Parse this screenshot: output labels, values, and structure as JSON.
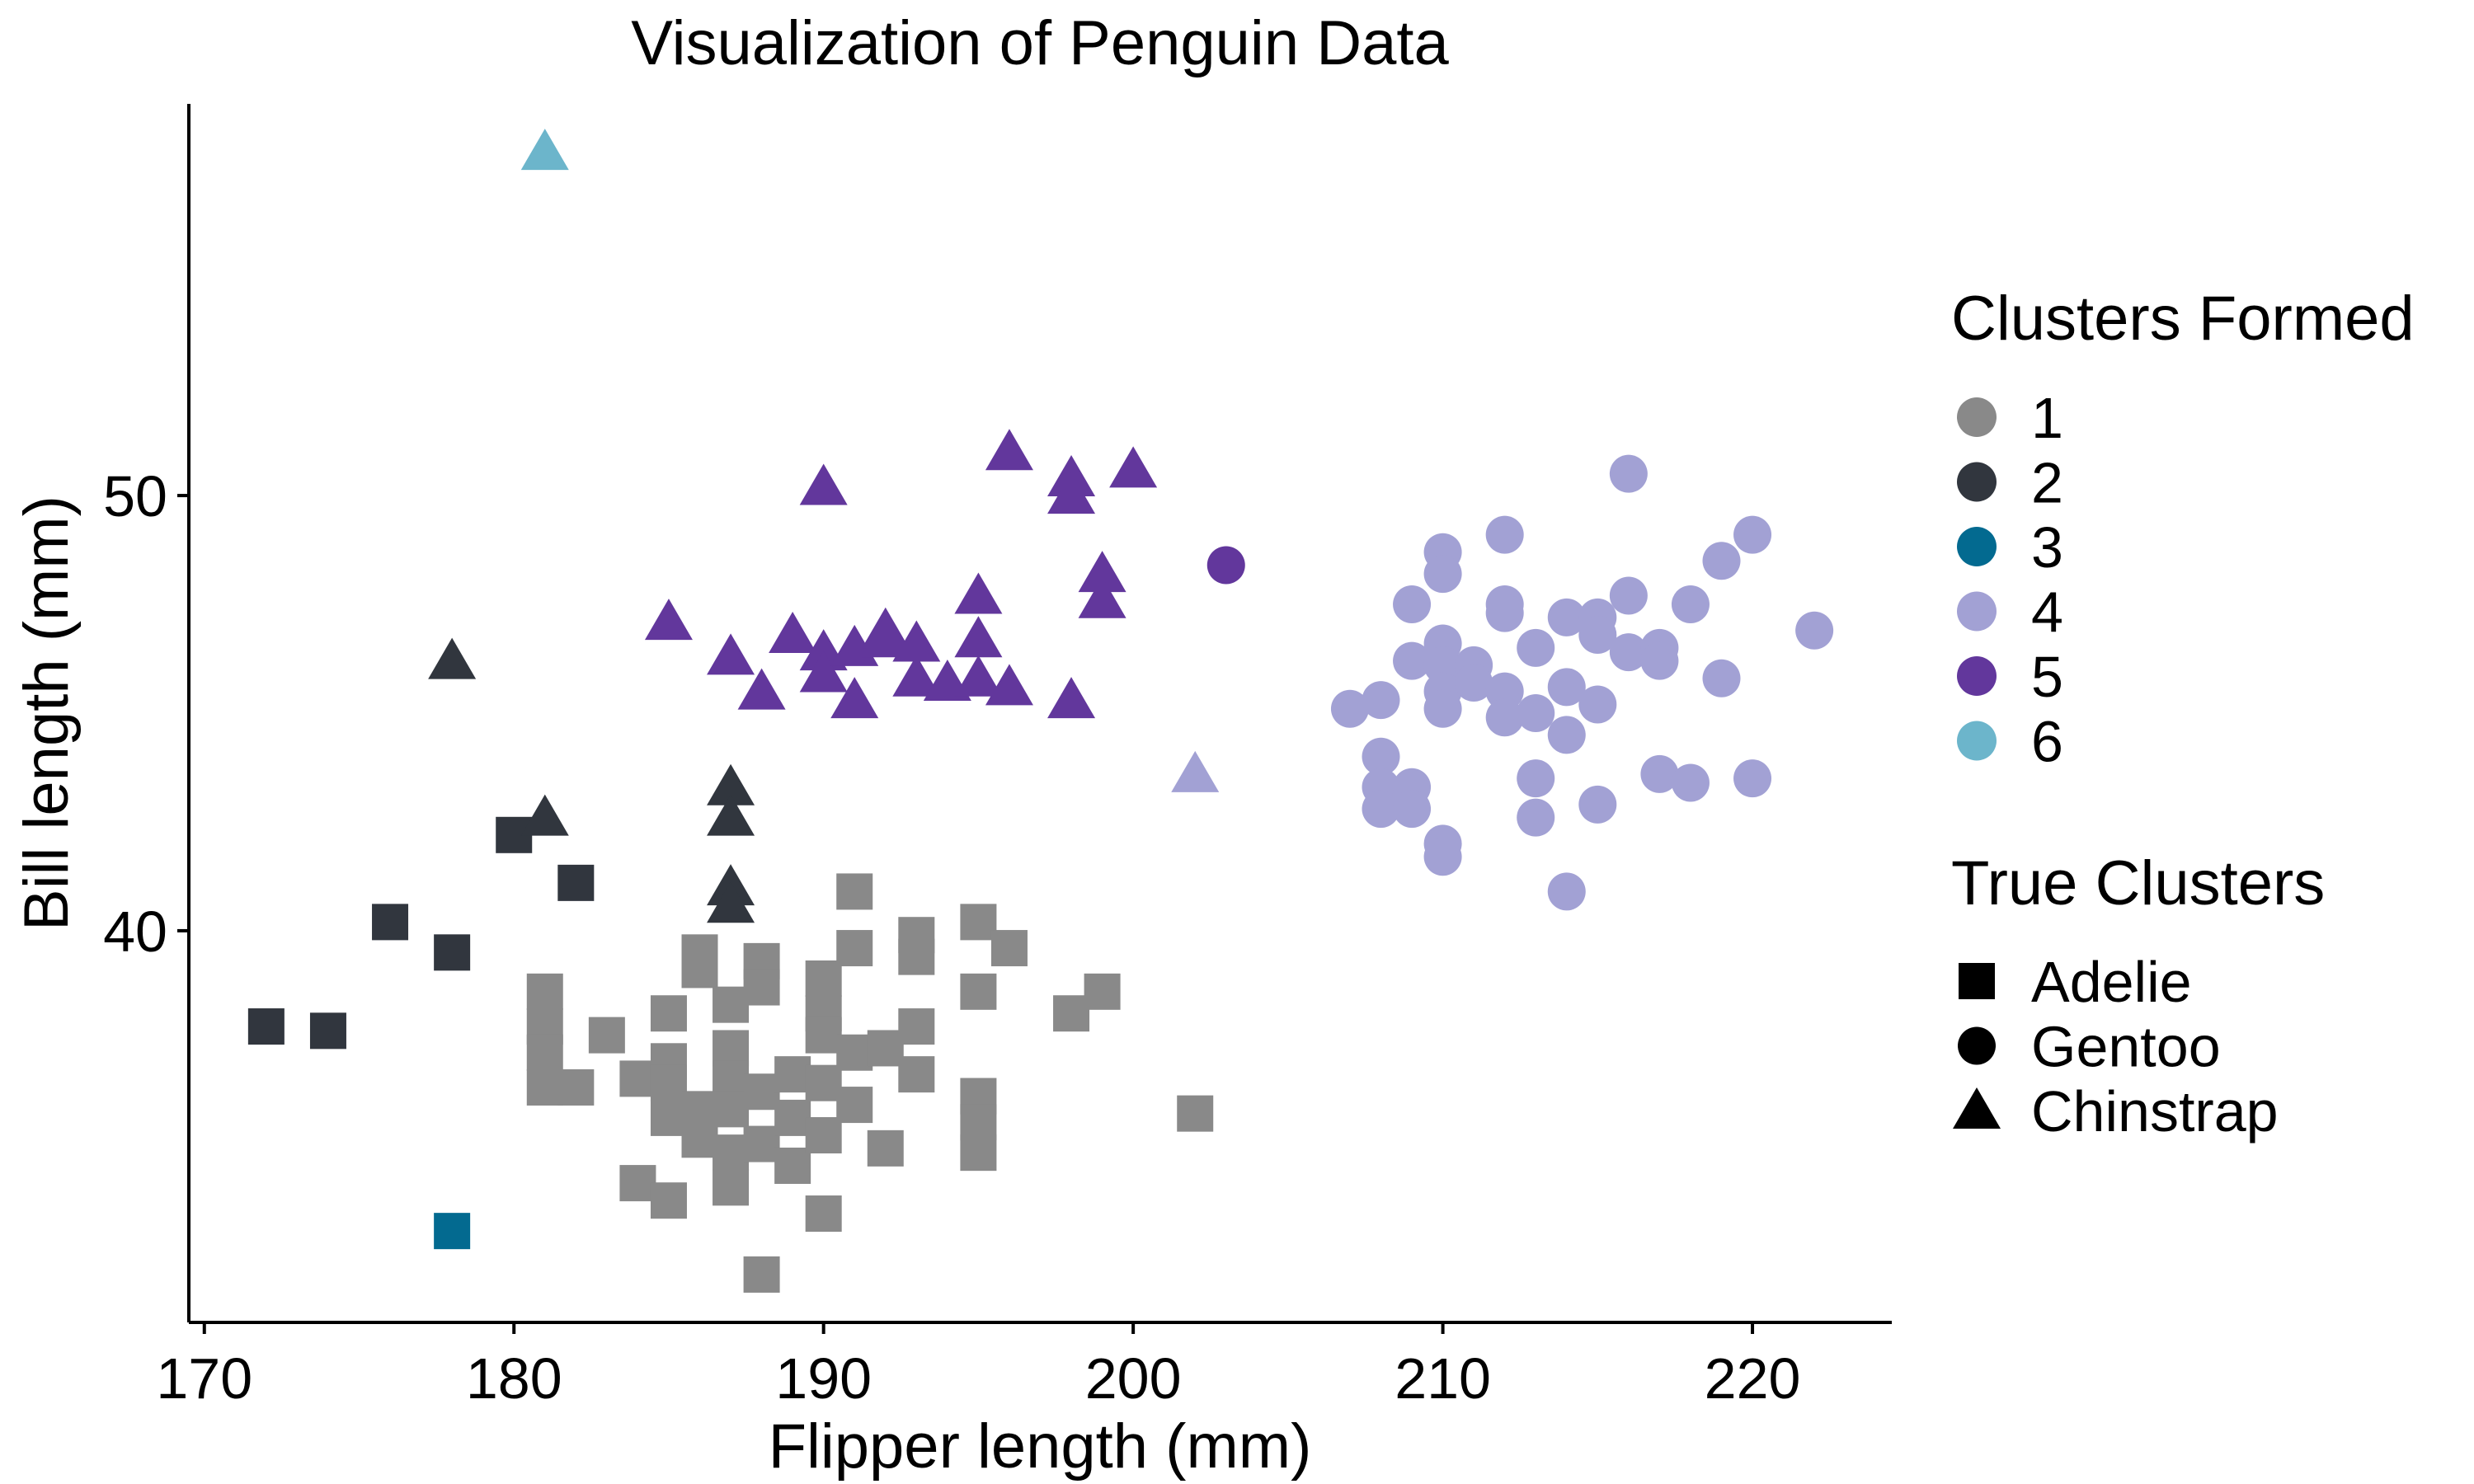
{
  "chart_data": {
    "type": "scatter",
    "title": "Visualization of Penguin Data",
    "xlabel": "Flipper length (mm)",
    "ylabel": "Bill length (mm)",
    "xlim": [
      169.5,
      224.5
    ],
    "ylim": [
      31,
      59
    ],
    "xticks": [
      170,
      180,
      190,
      200,
      210,
      220
    ],
    "yticks": [
      40,
      50
    ],
    "grid": false,
    "legend_placement": "right",
    "legends": {
      "color": {
        "title": "Clusters Formed",
        "entries": [
          {
            "label": "1",
            "color": "#898989"
          },
          {
            "label": "2",
            "color": "#31363e"
          },
          {
            "label": "3",
            "color": "#036a90"
          },
          {
            "label": "4",
            "color": "#a2a1d4"
          },
          {
            "label": "5",
            "color": "#62379c"
          },
          {
            "label": "6",
            "color": "#6cb5cb"
          }
        ]
      },
      "shape": {
        "title": "True Clusters",
        "entries": [
          {
            "label": "Adelie",
            "shape": "square"
          },
          {
            "label": "Gentoo",
            "shape": "circle"
          },
          {
            "label": "Chinstrap",
            "shape": "triangle"
          }
        ]
      }
    },
    "series": [
      {
        "cluster": "1",
        "species": "Adelie",
        "points": [
          [
            181,
            38.6
          ],
          [
            181,
            37.8
          ],
          [
            181,
            37.2
          ],
          [
            181,
            36.4
          ],
          [
            182,
            36.4
          ],
          [
            183,
            37.6
          ],
          [
            184,
            36.6
          ],
          [
            184,
            34.2
          ],
          [
            185,
            38.1
          ],
          [
            185,
            37.0
          ],
          [
            185,
            36.5
          ],
          [
            185,
            35.7
          ],
          [
            185,
            33.8
          ],
          [
            186,
            39.5
          ],
          [
            186,
            39.1
          ],
          [
            186,
            35.9
          ],
          [
            186,
            35.2
          ],
          [
            187,
            38.3
          ],
          [
            187,
            37.3
          ],
          [
            187,
            36.6
          ],
          [
            187,
            35.9
          ],
          [
            187,
            34.9
          ],
          [
            187,
            34.1
          ],
          [
            188,
            39.3
          ],
          [
            188,
            38.7
          ],
          [
            188,
            36.3
          ],
          [
            188,
            35.1
          ],
          [
            188,
            32.1
          ],
          [
            189,
            36.7
          ],
          [
            189,
            35.7
          ],
          [
            189,
            34.6
          ],
          [
            190,
            38.9
          ],
          [
            190,
            38.1
          ],
          [
            190,
            37.6
          ],
          [
            190,
            36.5
          ],
          [
            190,
            35.3
          ],
          [
            190,
            33.5
          ],
          [
            191,
            40.9
          ],
          [
            191,
            39.6
          ],
          [
            191,
            37.2
          ],
          [
            191,
            36.0
          ],
          [
            192,
            37.3
          ],
          [
            192,
            35.0
          ],
          [
            193,
            39.9
          ],
          [
            193,
            39.4
          ],
          [
            193,
            37.8
          ],
          [
            193,
            36.7
          ],
          [
            195,
            40.2
          ],
          [
            195,
            38.6
          ],
          [
            195,
            36.2
          ],
          [
            195,
            35.6
          ],
          [
            195,
            34.9
          ],
          [
            196,
            39.6
          ],
          [
            198,
            38.1
          ],
          [
            199,
            38.6
          ],
          [
            202,
            35.8
          ]
        ]
      },
      {
        "cluster": "2",
        "species": "Adelie",
        "points": [
          [
            172,
            37.8
          ],
          [
            174,
            37.7
          ],
          [
            176,
            40.2
          ],
          [
            178,
            39.5
          ],
          [
            180,
            42.2
          ],
          [
            182,
            41.1
          ]
        ]
      },
      {
        "cluster": "2",
        "species": "Chinstrap",
        "points": [
          [
            178,
            46.2
          ],
          [
            181,
            42.6
          ],
          [
            187,
            43.3
          ],
          [
            187,
            42.6
          ],
          [
            187,
            41.0
          ],
          [
            187,
            40.6
          ]
        ]
      },
      {
        "cluster": "3",
        "species": "Adelie",
        "points": [
          [
            178,
            33.1
          ]
        ]
      },
      {
        "cluster": "4",
        "species": "Gentoo",
        "points": [
          [
            207,
            45.1
          ],
          [
            208,
            45.3
          ],
          [
            208,
            44.0
          ],
          [
            208,
            43.3
          ],
          [
            208,
            42.8
          ],
          [
            209,
            47.5
          ],
          [
            209,
            46.2
          ],
          [
            209,
            43.3
          ],
          [
            209,
            42.8
          ],
          [
            210,
            48.7
          ],
          [
            210,
            48.2
          ],
          [
            210,
            46.6
          ],
          [
            210,
            46.1
          ],
          [
            210,
            45.5
          ],
          [
            210,
            45.1
          ],
          [
            210,
            42.0
          ],
          [
            210,
            41.7
          ],
          [
            211,
            46.1
          ],
          [
            211,
            45.7
          ],
          [
            212,
            49.1
          ],
          [
            212,
            47.5
          ],
          [
            212,
            47.3
          ],
          [
            212,
            45.5
          ],
          [
            212,
            44.9
          ],
          [
            213,
            46.5
          ],
          [
            213,
            45.0
          ],
          [
            213,
            43.5
          ],
          [
            213,
            42.6
          ],
          [
            214,
            47.2
          ],
          [
            214,
            45.6
          ],
          [
            214,
            44.5
          ],
          [
            214,
            40.9
          ],
          [
            215,
            47.2
          ],
          [
            215,
            46.8
          ],
          [
            215,
            45.2
          ],
          [
            215,
            42.9
          ],
          [
            216,
            50.5
          ],
          [
            216,
            47.7
          ],
          [
            216,
            46.4
          ],
          [
            217,
            46.5
          ],
          [
            217,
            46.2
          ],
          [
            217,
            43.6
          ],
          [
            218,
            47.5
          ],
          [
            218,
            43.4
          ],
          [
            219,
            48.5
          ],
          [
            219,
            45.8
          ],
          [
            220,
            49.1
          ],
          [
            220,
            43.5
          ],
          [
            222,
            46.9
          ]
        ]
      },
      {
        "cluster": "4",
        "species": "Chinstrap",
        "points": [
          [
            202,
            43.6
          ]
        ]
      },
      {
        "cluster": "5",
        "species": "Gentoo",
        "points": [
          [
            203,
            48.4
          ]
        ]
      },
      {
        "cluster": "5",
        "species": "Chinstrap",
        "points": [
          [
            185,
            47.1
          ],
          [
            187,
            46.3
          ],
          [
            188,
            45.5
          ],
          [
            189,
            46.8
          ],
          [
            190,
            50.2
          ],
          [
            190,
            46.4
          ],
          [
            190,
            45.9
          ],
          [
            191,
            46.5
          ],
          [
            191,
            45.3
          ],
          [
            192,
            46.9
          ],
          [
            192,
            46.7
          ],
          [
            193,
            46.6
          ],
          [
            193,
            45.8
          ],
          [
            194,
            45.7
          ],
          [
            195,
            47.7
          ],
          [
            195,
            46.7
          ],
          [
            195,
            45.8
          ],
          [
            196,
            51.0
          ],
          [
            196,
            45.6
          ],
          [
            198,
            50.4
          ],
          [
            198,
            50.0
          ],
          [
            198,
            45.3
          ],
          [
            199,
            48.2
          ],
          [
            199,
            47.6
          ],
          [
            200,
            50.6
          ]
        ]
      },
      {
        "cluster": "6",
        "species": "Chinstrap",
        "points": [
          [
            181,
            57.9
          ]
        ]
      }
    ]
  }
}
